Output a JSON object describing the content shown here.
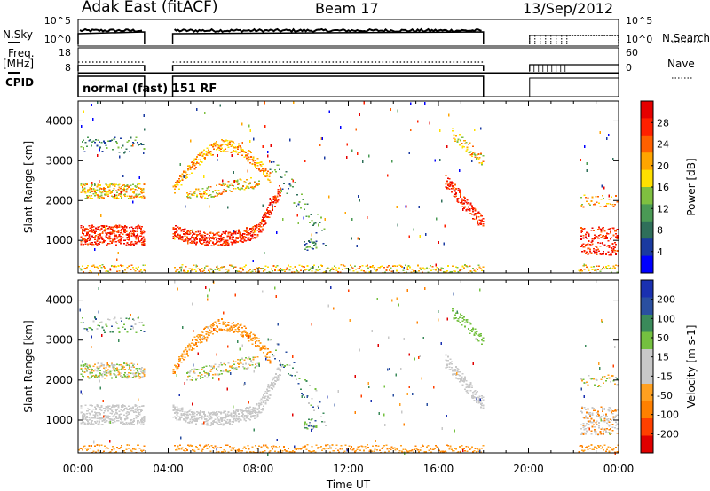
{
  "header": {
    "station": "Adak East (fitACF)",
    "beam": "Beam 17",
    "date": "13/Sep/2012"
  },
  "side_labels": {
    "nsky": "N.Sky",
    "freq": "Freq.",
    "mhz": "[MHz]",
    "cpid": "CPID",
    "nsearch": "N.Search",
    "nave": "Nave"
  },
  "cpid_text": "normal (fast) 151 RF",
  "colors": {
    "power_scale": [
      "#0000ff",
      "#1a3aa0",
      "#2f6f5a",
      "#4a9a55",
      "#7fc040",
      "#ffe000",
      "#ffa500",
      "#ff6000",
      "#ff2000",
      "#e60000"
    ],
    "velocity_scale": [
      "#1a30b0",
      "#2a4fa0",
      "#3a8a5a",
      "#74c040",
      "#c8c8c8",
      "#c8c8c8",
      "#ffa020",
      "#ff8000",
      "#ff4000",
      "#e00000"
    ],
    "gap": "#ffffff"
  },
  "chart_data": [
    {
      "type": "line",
      "title": "",
      "ylabel": "N.Sky",
      "ylabel_right": "N.Search",
      "yticks": [
        "10^5",
        "10^0"
      ],
      "yticks_right": [
        "10^5",
        "10^0"
      ],
      "xlim": [
        0,
        24
      ],
      "data_intervals_hours": [
        [
          0,
          2.95
        ],
        [
          4.2,
          18
        ],
        [
          20.0,
          24
        ]
      ]
    },
    {
      "type": "line",
      "title": "",
      "ylabel": "Freq. [MHz]",
      "ylabel_right": "Nave",
      "yticks": [
        "18",
        "8"
      ],
      "yticks_right": [
        "60",
        "0"
      ],
      "xlim": [
        0,
        24
      ]
    },
    {
      "type": "heatmap",
      "title": "",
      "ylabel": "Slant Range [km]",
      "colorbar_label": "Power [dB]",
      "yticks": [
        "1000",
        "2000",
        "3000",
        "4000"
      ],
      "ylim": [
        180,
        4500
      ],
      "colorbar_ticks": [
        "28",
        "24",
        "20",
        "16",
        "12",
        "8",
        "4"
      ],
      "colorbar_range": [
        0,
        32
      ],
      "xlim": [
        0,
        24
      ]
    },
    {
      "type": "heatmap",
      "title": "",
      "ylabel": "Slant Range [km]",
      "colorbar_label": "Velocity [m s-1]",
      "yticks": [
        "1000",
        "2000",
        "3000",
        "4000"
      ],
      "ylim": [
        180,
        4500
      ],
      "colorbar_ticks": [
        "200",
        "100",
        "50",
        "15",
        "-15",
        "-50",
        "-100",
        "-200"
      ],
      "colorbar_range": [
        -250,
        250
      ],
      "xlim": [
        0,
        24
      ]
    },
    {
      "type": "table",
      "xlabel": "Time UT",
      "xticks": [
        "00:00",
        "04:00",
        "08:00",
        "12:00",
        "16:00",
        "20:00",
        "00:00"
      ]
    }
  ]
}
